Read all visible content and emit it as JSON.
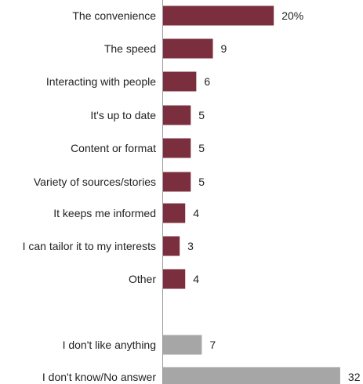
{
  "chart_data": {
    "type": "bar",
    "orientation": "horizontal",
    "title": "",
    "xlabel": "",
    "ylabel": "",
    "grid": false,
    "xlim": [
      0,
      32
    ],
    "categories": [
      "The convenience",
      "The speed",
      "Interacting with people",
      "It's up to date",
      "Content or format",
      "Variety of sources/stories",
      "It keeps me informed",
      "I can tailor it to my interests",
      "Other",
      "I don't like anything",
      "I don't know/No answer"
    ],
    "values": [
      20,
      9,
      6,
      5,
      5,
      5,
      4,
      3,
      4,
      7,
      32
    ],
    "value_labels": [
      "20%",
      "9",
      "6",
      "5",
      "5",
      "5",
      "4",
      "3",
      "4",
      "7",
      "32"
    ],
    "bar_groups": [
      "main",
      "main",
      "main",
      "main",
      "main",
      "main",
      "main",
      "main",
      "main",
      "other",
      "other"
    ],
    "colors": {
      "main": "#7b2f3e",
      "other": "#a6a6a6"
    }
  }
}
